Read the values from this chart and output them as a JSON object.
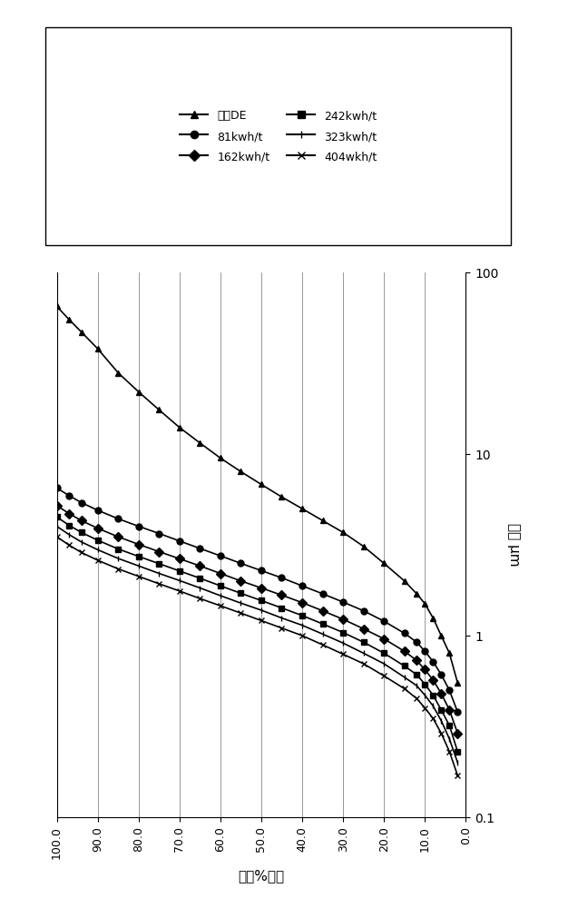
{
  "title": "",
  "xlabel": "粒重%结料",
  "ylabel": "粒径 μm",
  "series": [
    {
      "label": "进料DE",
      "marker": "^",
      "x": [
        100.0,
        97.0,
        94.0,
        90.0,
        85.0,
        80.0,
        75.0,
        70.0,
        65.0,
        60.0,
        55.0,
        50.0,
        45.0,
        40.0,
        35.0,
        30.0,
        25.0,
        20.0,
        15.0,
        12.0,
        10.0,
        8.0,
        6.0,
        4.0,
        2.0
      ],
      "y": [
        65.0,
        55.0,
        47.0,
        38.0,
        28.0,
        22.0,
        17.5,
        14.0,
        11.5,
        9.5,
        8.0,
        6.8,
        5.8,
        5.0,
        4.3,
        3.7,
        3.1,
        2.5,
        2.0,
        1.7,
        1.5,
        1.25,
        1.0,
        0.8,
        0.55
      ]
    },
    {
      "label": "81kwh/t",
      "marker": "o",
      "x": [
        100.0,
        97.0,
        94.0,
        90.0,
        85.0,
        80.0,
        75.0,
        70.0,
        65.0,
        60.0,
        55.0,
        50.0,
        45.0,
        40.0,
        35.0,
        30.0,
        25.0,
        20.0,
        15.0,
        12.0,
        10.0,
        8.0,
        6.0,
        4.0,
        2.0
      ],
      "y": [
        6.5,
        5.9,
        5.4,
        4.9,
        4.4,
        4.0,
        3.65,
        3.32,
        3.02,
        2.75,
        2.5,
        2.28,
        2.08,
        1.88,
        1.7,
        1.53,
        1.37,
        1.2,
        1.03,
        0.92,
        0.82,
        0.72,
        0.61,
        0.5,
        0.38
      ]
    },
    {
      "label": "162kwh/t",
      "marker": "D",
      "x": [
        100.0,
        97.0,
        94.0,
        90.0,
        85.0,
        80.0,
        75.0,
        70.0,
        65.0,
        60.0,
        55.0,
        50.0,
        45.0,
        40.0,
        35.0,
        30.0,
        25.0,
        20.0,
        15.0,
        12.0,
        10.0,
        8.0,
        6.0,
        4.0,
        2.0
      ],
      "y": [
        5.2,
        4.7,
        4.3,
        3.9,
        3.5,
        3.18,
        2.9,
        2.65,
        2.42,
        2.2,
        2.0,
        1.83,
        1.67,
        1.52,
        1.37,
        1.23,
        1.09,
        0.96,
        0.82,
        0.73,
        0.65,
        0.57,
        0.48,
        0.39,
        0.29
      ]
    },
    {
      "label": "242kwh/t",
      "marker": "s",
      "x": [
        100.0,
        97.0,
        94.0,
        90.0,
        85.0,
        80.0,
        75.0,
        70.0,
        65.0,
        60.0,
        55.0,
        50.0,
        45.0,
        40.0,
        35.0,
        30.0,
        25.0,
        20.0,
        15.0,
        12.0,
        10.0,
        8.0,
        6.0,
        4.0,
        2.0
      ],
      "y": [
        4.5,
        4.05,
        3.7,
        3.35,
        3.0,
        2.73,
        2.49,
        2.27,
        2.07,
        1.88,
        1.71,
        1.56,
        1.42,
        1.29,
        1.16,
        1.04,
        0.92,
        0.8,
        0.68,
        0.61,
        0.54,
        0.47,
        0.39,
        0.32,
        0.23
      ]
    },
    {
      "label": "323kwh/t",
      "marker": "|",
      "x": [
        100.0,
        97.0,
        94.0,
        90.0,
        85.0,
        80.0,
        75.0,
        70.0,
        65.0,
        60.0,
        55.0,
        50.0,
        45.0,
        40.0,
        35.0,
        30.0,
        25.0,
        20.0,
        15.0,
        12.0,
        10.0,
        8.0,
        6.0,
        4.0,
        2.0
      ],
      "y": [
        4.0,
        3.6,
        3.28,
        2.97,
        2.66,
        2.42,
        2.2,
        2.01,
        1.83,
        1.66,
        1.51,
        1.38,
        1.25,
        1.14,
        1.02,
        0.91,
        0.8,
        0.7,
        0.59,
        0.53,
        0.47,
        0.41,
        0.34,
        0.27,
        0.2
      ]
    },
    {
      "label": "404wkh/t",
      "marker": "x",
      "x": [
        100.0,
        97.0,
        94.0,
        90.0,
        85.0,
        80.0,
        75.0,
        70.0,
        65.0,
        60.0,
        55.0,
        50.0,
        45.0,
        40.0,
        35.0,
        30.0,
        25.0,
        20.0,
        15.0,
        12.0,
        10.0,
        8.0,
        6.0,
        4.0,
        2.0
      ],
      "y": [
        3.5,
        3.15,
        2.87,
        2.6,
        2.33,
        2.12,
        1.93,
        1.76,
        1.6,
        1.46,
        1.33,
        1.21,
        1.1,
        1.0,
        0.89,
        0.79,
        0.7,
        0.6,
        0.51,
        0.45,
        0.4,
        0.35,
        0.29,
        0.23,
        0.17
      ]
    }
  ],
  "xlim_min": 0.0,
  "xlim_max": 100.0,
  "ylim_min": 0.1,
  "ylim_max": 100.0,
  "xticks": [
    0.0,
    10.0,
    20.0,
    30.0,
    40.0,
    50.0,
    60.0,
    70.0,
    80.0,
    90.0,
    100.0
  ],
  "xticklabels": [
    "0.0",
    "10.0",
    "20.0",
    "30.0",
    "40.0",
    "50.0",
    "60.0",
    "70.0",
    "80.0",
    "90.0",
    "100.0"
  ],
  "ytick_labels": [
    "0.1",
    "1",
    "10",
    "100"
  ],
  "ytick_vals": [
    0.1,
    1.0,
    10.0,
    100.0
  ],
  "background_color": "#ffffff",
  "grid_color": "#888888",
  "markersize": 5,
  "linewidth": 1.2,
  "color": "#000000"
}
